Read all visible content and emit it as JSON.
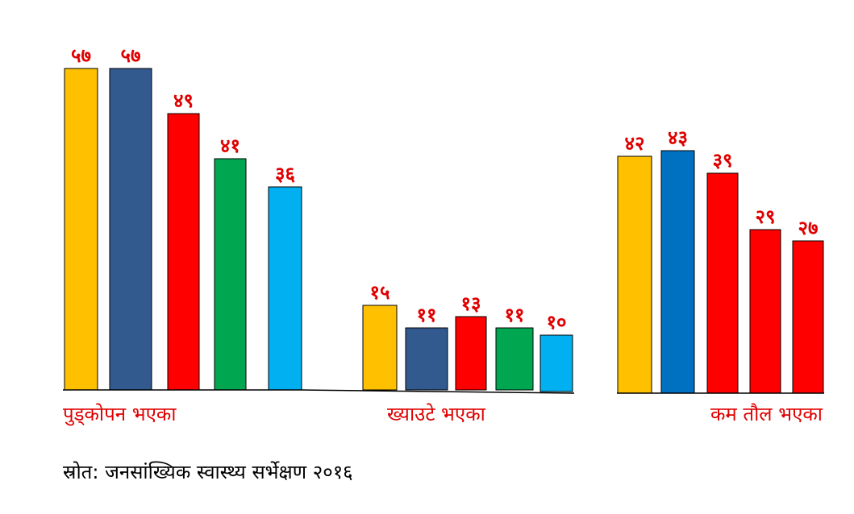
{
  "chart_data": {
    "type": "bar",
    "categories": [
      "पुड्कोपन भएका",
      "ख्याउटे भएका",
      "कम तौल भएका"
    ],
    "groups": [
      {
        "category": "पुड्कोपन भएका",
        "values": [
          57,
          57,
          49,
          41,
          36
        ],
        "labels": [
          "५७",
          "५७",
          "४९",
          "४१",
          "३६"
        ],
        "colors": [
          "#FFC000",
          "#335A8E",
          "#FF0000",
          "#00A650",
          "#00B0F0"
        ]
      },
      {
        "category": "ख्याउटे भएका",
        "values": [
          15,
          11,
          13,
          11,
          10
        ],
        "labels": [
          "१५",
          "११",
          "१३",
          "११",
          "१०"
        ],
        "colors": [
          "#FFC000",
          "#335A8E",
          "#FF0000",
          "#00A650",
          "#00B0F0"
        ]
      },
      {
        "category": "कम तौल भएका",
        "values": [
          42,
          43,
          39,
          29,
          27
        ],
        "labels": [
          "४२",
          "४३",
          "३९",
          "२९",
          "२७"
        ],
        "colors": [
          "#FFC000",
          "#0070C0",
          "#FF0000",
          "#FF0000",
          "#FF0000"
        ]
      }
    ],
    "ylim": [
      0,
      57
    ],
    "grid": false,
    "legend": "none"
  },
  "source_note": "स्रोत: जनसांख्यिक स्वास्थ्य सर्भेक्षण २०१६",
  "colors": {
    "label_text": "#E00000",
    "bar_outline": "#000000"
  }
}
